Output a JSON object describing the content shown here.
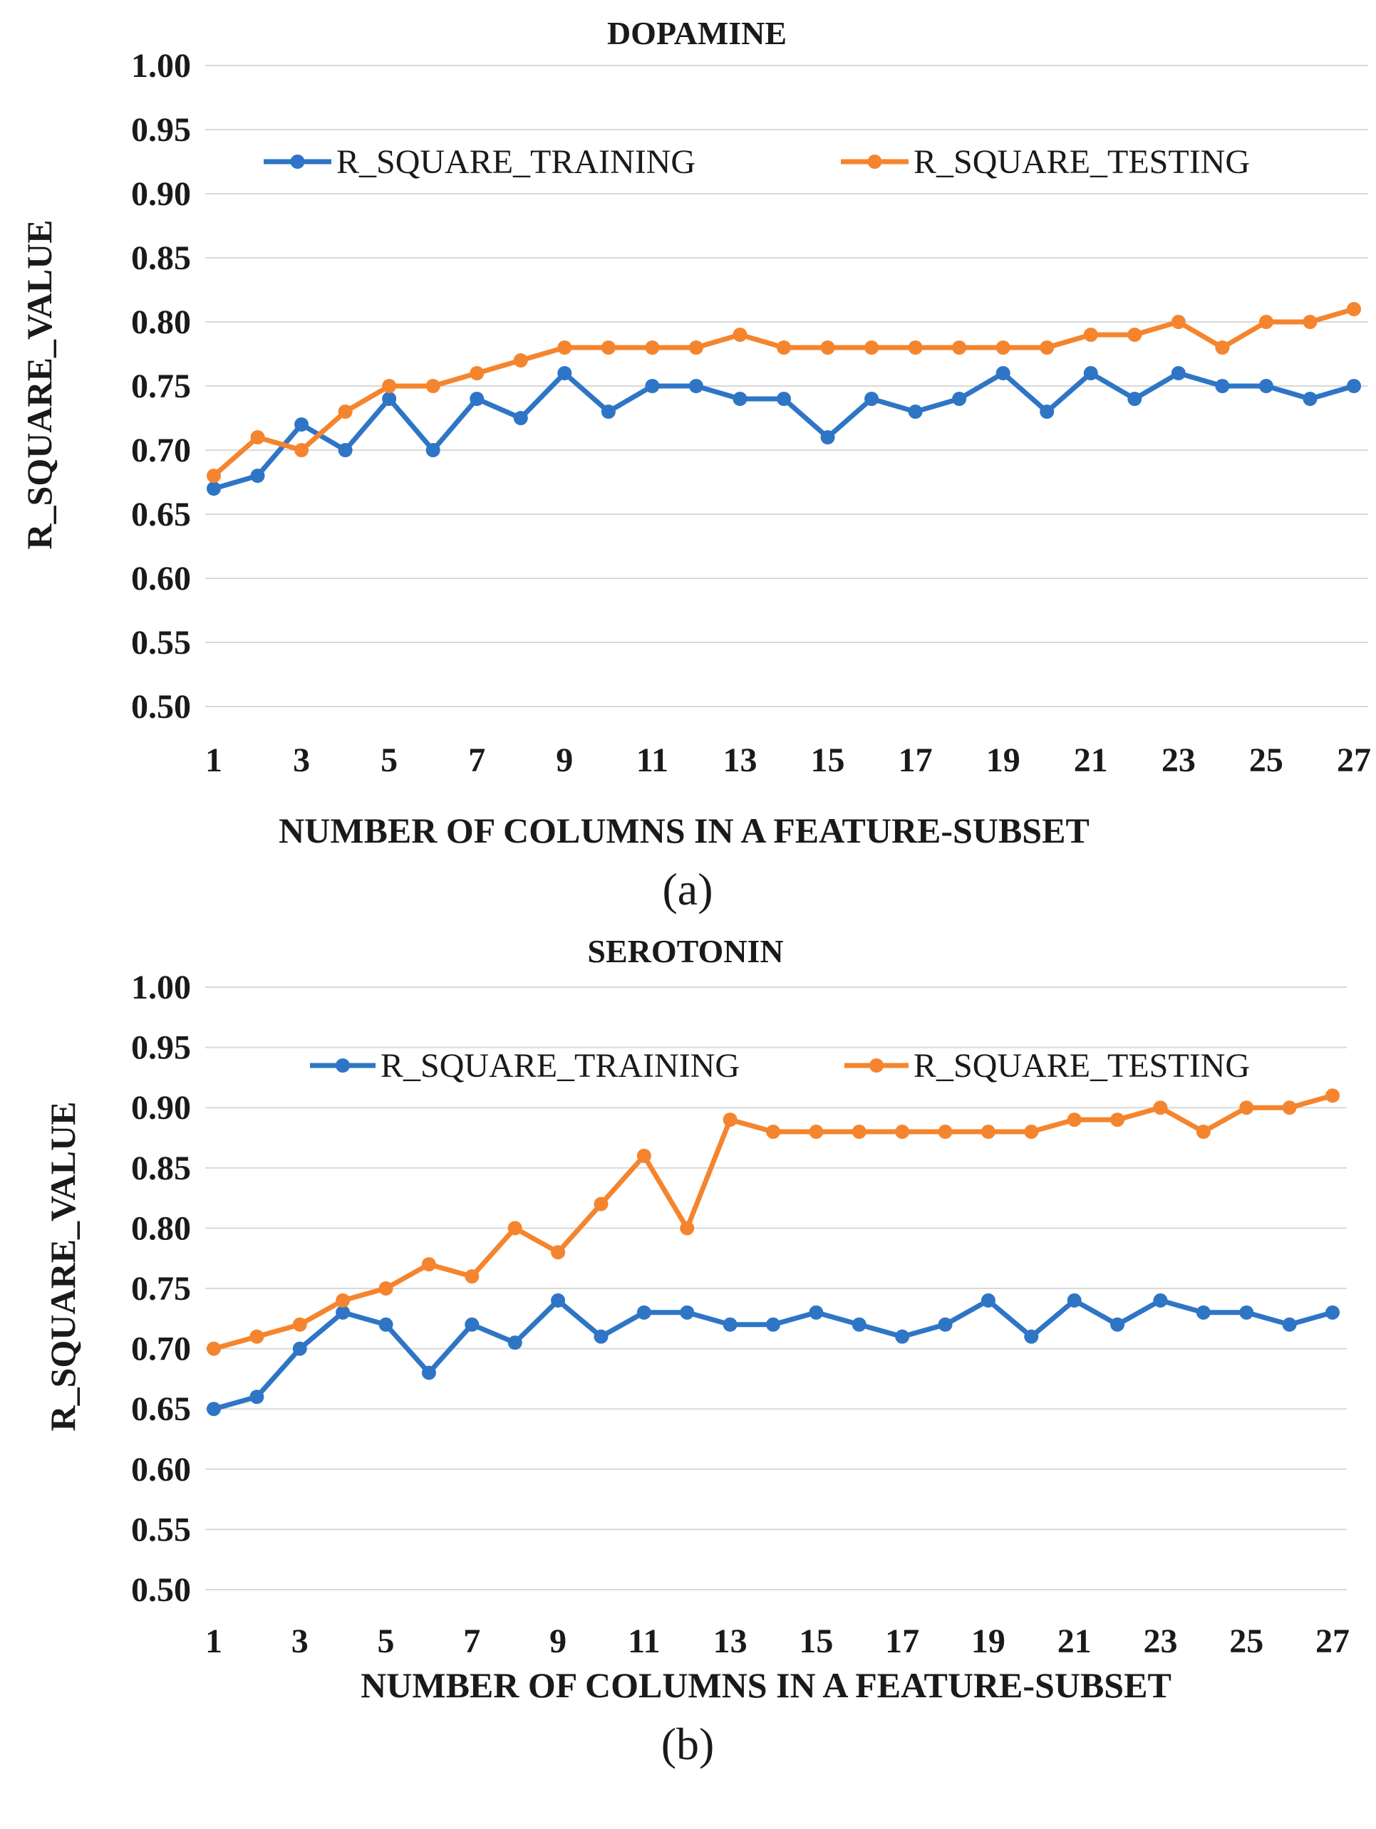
{
  "colors": {
    "training": "#2e75c6",
    "testing": "#f4852e",
    "grid": "#d9d9d9"
  },
  "chart_data": [
    {
      "type": "line",
      "title": "DOPAMINE",
      "caption": "(a)",
      "xlabel": "NUMBER OF COLUMNS IN A FEATURE-SUBSET",
      "ylabel": "R_SQUARE_VALUE",
      "ylim": [
        0.5,
        1.0
      ],
      "xlim": [
        1,
        27
      ],
      "grid": true,
      "legend_position": "top",
      "x": [
        1,
        2,
        3,
        4,
        5,
        6,
        7,
        8,
        9,
        10,
        11,
        12,
        13,
        14,
        15,
        16,
        17,
        18,
        19,
        20,
        21,
        22,
        23,
        24,
        25,
        26,
        27
      ],
      "x_tick_labels": [
        "1",
        "3",
        "5",
        "7",
        "9",
        "11",
        "13",
        "15",
        "17",
        "19",
        "21",
        "23",
        "25",
        "27"
      ],
      "y_tick_labels": [
        "0.50",
        "0.55",
        "0.60",
        "0.65",
        "0.70",
        "0.75",
        "0.80",
        "0.85",
        "0.90",
        "0.95",
        "1.00"
      ],
      "series": [
        {
          "name": "R_SQUARE_TRAINING",
          "values": [
            0.67,
            0.68,
            0.72,
            0.7,
            0.74,
            0.7,
            0.74,
            0.725,
            0.76,
            0.73,
            0.75,
            0.75,
            0.74,
            0.74,
            0.71,
            0.74,
            0.73,
            0.74,
            0.76,
            0.73,
            0.76,
            0.74,
            0.76,
            0.75,
            0.75,
            0.74,
            0.75
          ]
        },
        {
          "name": "R_SQUARE_TESTING",
          "values": [
            0.68,
            0.71,
            0.7,
            0.73,
            0.75,
            0.75,
            0.76,
            0.77,
            0.78,
            0.78,
            0.78,
            0.78,
            0.79,
            0.78,
            0.78,
            0.78,
            0.78,
            0.78,
            0.78,
            0.78,
            0.79,
            0.79,
            0.8,
            0.78,
            0.8,
            0.8,
            0.81
          ]
        }
      ]
    },
    {
      "type": "line",
      "title": "SEROTONIN",
      "caption": "(b)",
      "xlabel": "NUMBER OF COLUMNS IN A FEATURE-SUBSET",
      "ylabel": "R_SQUARE_VALUE",
      "ylim": [
        0.5,
        1.0
      ],
      "xlim": [
        1,
        27
      ],
      "grid": true,
      "legend_position": "top",
      "x": [
        1,
        2,
        3,
        4,
        5,
        6,
        7,
        8,
        9,
        10,
        11,
        12,
        13,
        14,
        15,
        16,
        17,
        18,
        19,
        20,
        21,
        22,
        23,
        24,
        25,
        26,
        27
      ],
      "x_tick_labels": [
        "1",
        "3",
        "5",
        "7",
        "9",
        "11",
        "13",
        "15",
        "17",
        "19",
        "21",
        "23",
        "25",
        "27"
      ],
      "y_tick_labels": [
        "0.50",
        "0.55",
        "0.60",
        "0.65",
        "0.70",
        "0.75",
        "0.80",
        "0.85",
        "0.90",
        "0.95",
        "1.00"
      ],
      "series": [
        {
          "name": "R_SQUARE_TRAINING",
          "values": [
            0.65,
            0.66,
            0.7,
            0.73,
            0.72,
            0.68,
            0.72,
            0.705,
            0.74,
            0.71,
            0.73,
            0.73,
            0.72,
            0.72,
            0.73,
            0.72,
            0.71,
            0.72,
            0.74,
            0.71,
            0.74,
            0.72,
            0.74,
            0.73,
            0.73,
            0.72,
            0.73
          ]
        },
        {
          "name": "R_SQUARE_TESTING",
          "values": [
            0.7,
            0.71,
            0.72,
            0.74,
            0.75,
            0.77,
            0.76,
            0.8,
            0.78,
            0.82,
            0.86,
            0.8,
            0.89,
            0.88,
            0.88,
            0.88,
            0.88,
            0.88,
            0.88,
            0.88,
            0.89,
            0.89,
            0.9,
            0.88,
            0.9,
            0.9,
            0.91
          ]
        }
      ]
    }
  ]
}
